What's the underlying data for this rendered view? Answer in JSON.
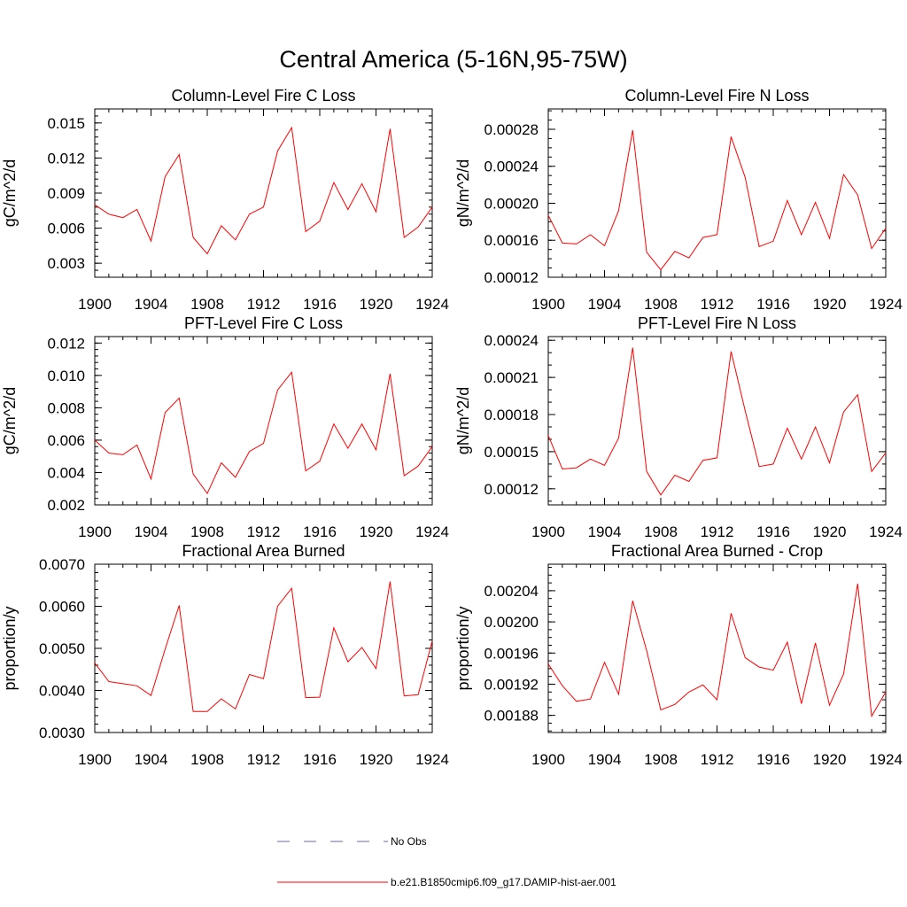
{
  "figure": {
    "title": "Central America (5-16N,95-75W)"
  },
  "legend": {
    "items": [
      {
        "label": "No Obs",
        "style": "dashed",
        "color": "#6a6ab4"
      },
      {
        "label": "b.e21.B1850cmip6.f09_g17.DAMIP-hist-aer.001",
        "style": "solid",
        "color": "#ff0000"
      }
    ]
  },
  "chart_data": [
    {
      "type": "line",
      "title": "Column-Level Fire C Loss",
      "ylabel": "gC/m^2/d",
      "xlim": [
        1900,
        1924
      ],
      "ylim": [
        0.0018,
        0.0162
      ],
      "xticks": [
        "1900",
        "1904",
        "1908",
        "1912",
        "1916",
        "1920",
        "1924"
      ],
      "yticks": [
        {
          "v": 0.003,
          "label": "0.003"
        },
        {
          "v": 0.006,
          "label": "0.006"
        },
        {
          "v": 0.009,
          "label": "0.009"
        },
        {
          "v": 0.012,
          "label": "0.012"
        },
        {
          "v": 0.015,
          "label": "0.015"
        }
      ],
      "minor_step": 0.0006,
      "x": [
        1900,
        1901,
        1902,
        1903,
        1904,
        1905,
        1906,
        1907,
        1908,
        1909,
        1910,
        1911,
        1912,
        1913,
        1914,
        1915,
        1916,
        1917,
        1918,
        1919,
        1920,
        1921,
        1922,
        1923,
        1924
      ],
      "series": [
        {
          "values": [
            0.008,
            0.0072,
            0.0069,
            0.0076,
            0.0049,
            0.0104,
            0.0123,
            0.0052,
            0.0038,
            0.0062,
            0.005,
            0.0072,
            0.0078,
            0.0126,
            0.0146,
            0.0057,
            0.0066,
            0.0099,
            0.0076,
            0.0098,
            0.0074,
            0.0145,
            0.0052,
            0.0061,
            0.0078
          ],
          "color": "#ff0000"
        }
      ]
    },
    {
      "type": "line",
      "title": "Column-Level Fire N Loss",
      "ylabel": "gN/m^2/d",
      "xlim": [
        1900,
        1924
      ],
      "ylim": [
        0.00012,
        0.000302
      ],
      "xticks": [
        "1900",
        "1904",
        "1908",
        "1912",
        "1916",
        "1920",
        "1924"
      ],
      "yticks": [
        {
          "v": 0.00012,
          "label": "0.00012"
        },
        {
          "v": 0.00016,
          "label": "0.00016"
        },
        {
          "v": 0.0002,
          "label": "0.00020"
        },
        {
          "v": 0.00024,
          "label": "0.00024"
        },
        {
          "v": 0.00028,
          "label": "0.00028"
        }
      ],
      "minor_step": 1e-05,
      "x": [
        1900,
        1901,
        1902,
        1903,
        1904,
        1905,
        1906,
        1907,
        1908,
        1909,
        1910,
        1911,
        1912,
        1913,
        1914,
        1915,
        1916,
        1917,
        1918,
        1919,
        1920,
        1921,
        1922,
        1923,
        1924
      ],
      "series": [
        {
          "values": [
            0.000187,
            0.000157,
            0.000156,
            0.000166,
            0.000154,
            0.000192,
            0.000279,
            0.000147,
            0.000128,
            0.000148,
            0.000141,
            0.000163,
            0.000166,
            0.000272,
            0.000228,
            0.000153,
            0.000159,
            0.000203,
            0.000166,
            0.000201,
            0.000162,
            0.000231,
            0.000209,
            0.000151,
            0.000173
          ],
          "color": "#ff0000"
        }
      ]
    },
    {
      "type": "line",
      "title": "PFT-Level Fire C Loss",
      "ylabel": "gC/m^2/d",
      "xlim": [
        1900,
        1924
      ],
      "ylim": [
        0.002,
        0.0124
      ],
      "xticks": [
        "1900",
        "1904",
        "1908",
        "1912",
        "1916",
        "1920",
        "1924"
      ],
      "yticks": [
        {
          "v": 0.002,
          "label": "0.002"
        },
        {
          "v": 0.004,
          "label": "0.004"
        },
        {
          "v": 0.006,
          "label": "0.006"
        },
        {
          "v": 0.008,
          "label": "0.008"
        },
        {
          "v": 0.01,
          "label": "0.010"
        },
        {
          "v": 0.012,
          "label": "0.012"
        }
      ],
      "minor_step": 0.0004,
      "x": [
        1900,
        1901,
        1902,
        1903,
        1904,
        1905,
        1906,
        1907,
        1908,
        1909,
        1910,
        1911,
        1912,
        1913,
        1914,
        1915,
        1916,
        1917,
        1918,
        1919,
        1920,
        1921,
        1922,
        1923,
        1924
      ],
      "series": [
        {
          "values": [
            0.006,
            0.0052,
            0.0051,
            0.0057,
            0.0036,
            0.0077,
            0.0086,
            0.0039,
            0.0027,
            0.0046,
            0.0037,
            0.0053,
            0.0058,
            0.0091,
            0.0102,
            0.0041,
            0.0047,
            0.007,
            0.0055,
            0.007,
            0.0054,
            0.0101,
            0.0038,
            0.0044,
            0.0056
          ],
          "color": "#ff0000"
        }
      ]
    },
    {
      "type": "line",
      "title": "PFT-Level Fire N Loss",
      "ylabel": "gN/m^2/d",
      "xlim": [
        1900,
        1924
      ],
      "ylim": [
        0.000107,
        0.000243
      ],
      "xticks": [
        "1900",
        "1904",
        "1908",
        "1912",
        "1916",
        "1920",
        "1924"
      ],
      "yticks": [
        {
          "v": 0.00012,
          "label": "0.00012"
        },
        {
          "v": 0.00015,
          "label": "0.00015"
        },
        {
          "v": 0.00018,
          "label": "0.00018"
        },
        {
          "v": 0.00021,
          "label": "0.00021"
        },
        {
          "v": 0.00024,
          "label": "0.00024"
        }
      ],
      "minor_step": 1e-05,
      "x": [
        1900,
        1901,
        1902,
        1903,
        1904,
        1905,
        1906,
        1907,
        1908,
        1909,
        1910,
        1911,
        1912,
        1913,
        1914,
        1915,
        1916,
        1917,
        1918,
        1919,
        1920,
        1921,
        1922,
        1923,
        1924
      ],
      "series": [
        {
          "values": [
            0.000163,
            0.000136,
            0.000137,
            0.000144,
            0.000139,
            0.000161,
            0.000234,
            0.000134,
            0.000115,
            0.000131,
            0.000126,
            0.000143,
            0.000145,
            0.000231,
            0.000183,
            0.000138,
            0.00014,
            0.000169,
            0.000144,
            0.00017,
            0.000141,
            0.000182,
            0.000196,
            0.000134,
            0.000149
          ],
          "color": "#ff0000"
        }
      ]
    },
    {
      "type": "line",
      "title": "Fractional Area Burned",
      "ylabel": "proportion/y",
      "xlim": [
        1900,
        1924
      ],
      "ylim": [
        0.003,
        0.007
      ],
      "xticks": [
        "1900",
        "1904",
        "1908",
        "1912",
        "1916",
        "1920",
        "1924"
      ],
      "yticks": [
        {
          "v": 0.003,
          "label": "0.0030"
        },
        {
          "v": 0.004,
          "label": "0.0040"
        },
        {
          "v": 0.005,
          "label": "0.0050"
        },
        {
          "v": 0.006,
          "label": "0.0060"
        },
        {
          "v": 0.007,
          "label": "0.0070"
        }
      ],
      "minor_step": 0.0002,
      "x": [
        1900,
        1901,
        1902,
        1903,
        1904,
        1905,
        1906,
        1907,
        1908,
        1909,
        1910,
        1911,
        1912,
        1913,
        1914,
        1915,
        1916,
        1917,
        1918,
        1919,
        1920,
        1921,
        1922,
        1923,
        1924
      ],
      "series": [
        {
          "values": [
            0.00465,
            0.00421,
            0.00416,
            0.00411,
            0.00388,
            0.00498,
            0.00602,
            0.0035,
            0.0035,
            0.0038,
            0.00356,
            0.00438,
            0.00428,
            0.006,
            0.00643,
            0.00383,
            0.00384,
            0.00549,
            0.00468,
            0.00502,
            0.00452,
            0.00659,
            0.00387,
            0.0039,
            0.00518
          ],
          "color": "#ff0000"
        }
      ]
    },
    {
      "type": "line",
      "title": "Fractional Area Burned - Crop",
      "ylabel": "proportion/y",
      "xlim": [
        1900,
        1924
      ],
      "ylim": [
        0.001858,
        0.002074
      ],
      "xticks": [
        "1900",
        "1904",
        "1908",
        "1912",
        "1916",
        "1920",
        "1924"
      ],
      "yticks": [
        {
          "v": 0.00188,
          "label": "0.00188"
        },
        {
          "v": 0.00192,
          "label": "0.00192"
        },
        {
          "v": 0.00196,
          "label": "0.00196"
        },
        {
          "v": 0.002,
          "label": "0.00200"
        },
        {
          "v": 0.00204,
          "label": "0.00204"
        }
      ],
      "minor_step": 1e-05,
      "x": [
        1900,
        1901,
        1902,
        1903,
        1904,
        1905,
        1906,
        1907,
        1908,
        1909,
        1910,
        1911,
        1912,
        1913,
        1914,
        1915,
        1916,
        1917,
        1918,
        1919,
        1920,
        1921,
        1922,
        1923,
        1924
      ],
      "series": [
        {
          "values": [
            0.001946,
            0.001918,
            0.001898,
            0.001901,
            0.001948,
            0.001907,
            0.002027,
            0.001963,
            0.001887,
            0.001894,
            0.00191,
            0.001919,
            0.0019,
            0.002011,
            0.001954,
            0.001942,
            0.001938,
            0.001974,
            0.001895,
            0.001973,
            0.001893,
            0.001933,
            0.002049,
            0.001879,
            0.00191
          ],
          "color": "#ff0000"
        }
      ]
    }
  ]
}
